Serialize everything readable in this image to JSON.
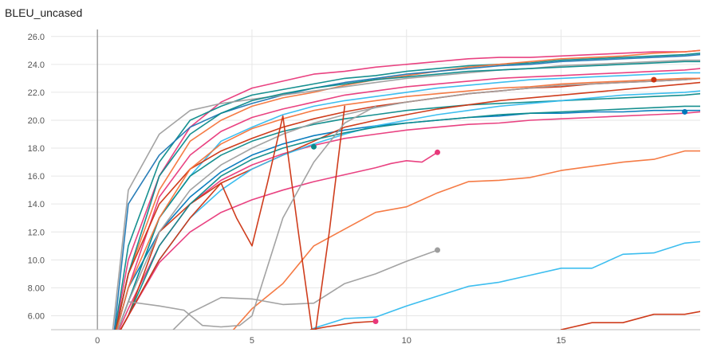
{
  "chart_data": {
    "type": "line",
    "title": "BLEU_uncased",
    "xlabel": "",
    "ylabel": "",
    "xlim": [
      -1.5,
      19.5
    ],
    "ylim": [
      5.0,
      26.5
    ],
    "x_ticks": [
      0,
      5,
      10,
      15
    ],
    "x_tick_labels": [
      "0",
      "5",
      "10",
      "15"
    ],
    "y_ticks": [
      6,
      8,
      10,
      12,
      14,
      16,
      18,
      20,
      22,
      24,
      26
    ],
    "y_tick_labels": [
      "6.00",
      "8.00",
      "10.0",
      "12.0",
      "14.0",
      "16.0",
      "18.0",
      "20.0",
      "22.0",
      "24.0",
      "26.0"
    ],
    "grid": true,
    "legend": "none",
    "series": [
      {
        "color": "#e8387a",
        "x": [
          0.5,
          1,
          2,
          3,
          4,
          5,
          6,
          7,
          8,
          9,
          10,
          11,
          12,
          13,
          14,
          15,
          16,
          17,
          18,
          19,
          19.5
        ],
        "y": [
          4,
          10,
          16,
          19.5,
          21.3,
          22.3,
          22.8,
          23.3,
          23.5,
          23.8,
          24,
          24.2,
          24.4,
          24.5,
          24.5,
          24.6,
          24.7,
          24.8,
          24.9,
          24.9,
          25
        ]
      },
      {
        "color": "#0b8a8a",
        "x": [
          0.5,
          1,
          2,
          3,
          4,
          5,
          6,
          7,
          8,
          9,
          10,
          11,
          12,
          13,
          14,
          15,
          16,
          17,
          18,
          19,
          19.5
        ],
        "y": [
          4,
          11,
          17,
          20,
          21,
          21.8,
          22.2,
          22.6,
          23,
          23.2,
          23.5,
          23.7,
          23.9,
          24,
          24.1,
          24.3,
          24.4,
          24.5,
          24.6,
          24.7,
          24.8
        ]
      },
      {
        "color": "#f4743b",
        "x": [
          0.5,
          1,
          2,
          3,
          4,
          5,
          6,
          7,
          8,
          9,
          10,
          11,
          12,
          13,
          14,
          15,
          16,
          17,
          18,
          19,
          19.5
        ],
        "y": [
          4,
          9,
          15,
          18.5,
          20,
          21,
          21.6,
          22,
          22.5,
          22.9,
          23.2,
          23.5,
          23.8,
          24,
          24.2,
          24.4,
          24.5,
          24.6,
          24.8,
          24.9,
          25
        ]
      },
      {
        "color": "#1f77b4",
        "x": [
          0.5,
          1,
          2,
          3,
          4,
          5,
          6,
          7,
          8,
          9,
          10,
          11,
          12,
          13,
          14,
          15,
          16,
          17,
          18,
          19,
          19.5
        ],
        "y": [
          4,
          14,
          17.5,
          19.5,
          20.5,
          21.2,
          21.8,
          22.3,
          22.7,
          23,
          23.3,
          23.5,
          23.7,
          23.9,
          24,
          24.2,
          24.3,
          24.4,
          24.5,
          24.6,
          24.7
        ]
      },
      {
        "color": "#9e9e9e",
        "x": [
          0.5,
          1,
          2,
          3,
          4,
          5,
          6,
          7,
          8,
          9,
          10,
          11,
          12,
          13,
          14,
          15,
          16,
          17,
          18,
          19,
          19.5
        ],
        "y": [
          5,
          15,
          19,
          20.7,
          21.2,
          21.5,
          21.8,
          22.1,
          22.4,
          22.7,
          23,
          23.2,
          23.4,
          23.6,
          23.7,
          23.9,
          24,
          24.1,
          24.2,
          24.3,
          24.3
        ]
      },
      {
        "color": "#0b8a8a",
        "x": [
          0.5,
          1,
          2,
          3,
          4,
          5,
          6,
          7,
          8,
          9,
          10,
          11,
          12,
          13,
          14,
          15,
          16,
          17,
          18,
          19,
          19.5
        ],
        "y": [
          4,
          9,
          16,
          19,
          20.5,
          21.4,
          21.9,
          22.3,
          22.6,
          22.9,
          23.1,
          23.3,
          23.5,
          23.6,
          23.7,
          23.8,
          23.9,
          24,
          24.1,
          24.2,
          24.2
        ]
      },
      {
        "color": "#e8387a",
        "x": [
          0.5,
          1,
          2,
          3,
          4,
          5,
          6,
          7,
          8,
          9,
          10,
          11,
          12,
          13,
          14,
          15,
          16,
          17,
          18,
          19,
          19.5
        ],
        "y": [
          4,
          8,
          14.5,
          17.5,
          19.2,
          20.2,
          20.8,
          21.3,
          21.8,
          22.1,
          22.4,
          22.6,
          22.8,
          23,
          23.1,
          23.2,
          23.3,
          23.4,
          23.5,
          23.6,
          23.7
        ]
      },
      {
        "color": "#33bbee",
        "x": [
          0.5,
          1,
          2,
          3,
          4,
          5,
          6,
          7,
          8,
          9,
          10,
          11,
          12,
          13,
          14,
          15,
          16,
          17,
          18,
          19,
          19.5
        ],
        "y": [
          4,
          7,
          13,
          16,
          18.5,
          19.5,
          20.4,
          21,
          21.4,
          21.7,
          22,
          22.3,
          22.5,
          22.7,
          22.9,
          23,
          23.1,
          23.2,
          23.3,
          23.4,
          23.4
        ]
      },
      {
        "color": "#cc3311",
        "x": [
          0.5,
          1,
          2,
          3,
          4,
          5,
          6,
          7,
          8,
          9,
          10,
          11,
          12,
          13,
          14,
          15,
          16,
          17,
          18,
          19,
          19.5
        ],
        "y": [
          4,
          9,
          14,
          16.5,
          17.8,
          18.7,
          19.5,
          20.1,
          20.6,
          21,
          21.3,
          21.6,
          21.9,
          22.1,
          22.3,
          22.4,
          22.6,
          22.7,
          22.8,
          22.9,
          23
        ]
      },
      {
        "color": "#0077bb",
        "x": [
          0.5,
          1,
          2,
          3,
          4,
          5,
          6,
          7,
          8,
          9,
          10,
          11,
          12,
          13,
          14,
          15,
          16,
          17,
          18,
          19,
          19.5
        ],
        "y": [
          4,
          8,
          12,
          14.5,
          16.3,
          17.5,
          18.3,
          18.9,
          19.3,
          19.6,
          19.8,
          20,
          20.2,
          20.3,
          20.5,
          20.5,
          20.6,
          20.6,
          20.7,
          20.7,
          20.7
        ]
      },
      {
        "color": "#0b8a8a",
        "x": [
          0.5,
          1,
          2,
          3,
          4,
          5,
          6,
          7,
          8,
          9,
          10,
          11,
          12,
          13,
          14,
          15,
          16,
          17,
          18,
          19,
          19.5
        ],
        "y": [
          4,
          7,
          13,
          16,
          17.5,
          18.5,
          19.2,
          19.7,
          20.1,
          20.4,
          20.7,
          20.9,
          21.1,
          21.2,
          21.3,
          21.4,
          21.5,
          21.6,
          21.7,
          21.8,
          21.9
        ]
      },
      {
        "color": "#e8387a",
        "x": [
          0.5,
          1,
          2,
          3,
          4,
          5,
          6,
          7,
          8,
          9,
          10,
          11,
          12,
          13,
          14,
          15,
          16,
          17,
          18,
          19,
          19.5
        ],
        "y": [
          4,
          6.5,
          11,
          14,
          15.7,
          16.8,
          17.6,
          18.2,
          18.7,
          19,
          19.3,
          19.5,
          19.7,
          19.8,
          20,
          20.1,
          20.2,
          20.3,
          20.4,
          20.5,
          20.6
        ]
      },
      {
        "color": "#cc3311",
        "x": [
          0.5,
          1,
          2,
          3,
          4,
          5,
          6,
          7,
          8,
          9,
          10,
          11,
          12,
          13,
          14,
          15,
          16,
          17,
          18,
          19,
          19.5
        ],
        "y": [
          4,
          6,
          12,
          14,
          15.5,
          16.5,
          17.5,
          18.5,
          19.5,
          20,
          20.4,
          20.8,
          21.1,
          21.4,
          21.6,
          21.8,
          22,
          22.2,
          22.4,
          22.6,
          22.7
        ]
      },
      {
        "color": "#33bbee",
        "x": [
          0.5,
          1,
          2,
          3,
          4,
          5,
          6,
          7,
          8,
          9,
          10,
          11,
          12,
          13,
          14,
          15,
          16,
          17,
          18,
          19,
          19.5
        ],
        "y": [
          4,
          6,
          10,
          13,
          15,
          16.5,
          17.5,
          18.3,
          19,
          19.6,
          20,
          20.4,
          20.7,
          21,
          21.2,
          21.4,
          21.6,
          21.8,
          21.9,
          22,
          22.1
        ]
      },
      {
        "color": "#9e9e9e",
        "x": [
          0.5,
          1,
          2,
          3,
          4,
          5,
          6,
          7,
          8,
          9,
          10,
          11,
          12,
          13,
          14,
          15,
          16,
          17,
          18,
          19,
          19.5
        ],
        "y": [
          4,
          7,
          12,
          15,
          16.8,
          18,
          19,
          19.8,
          20.4,
          20.9,
          21.3,
          21.6,
          21.9,
          22.1,
          22.3,
          22.5,
          22.6,
          22.7,
          22.8,
          22.9,
          23
        ]
      },
      {
        "color": "#f4743b",
        "x": [
          0.5,
          1,
          2,
          3,
          4,
          5,
          6,
          7,
          8,
          9,
          10,
          11,
          12,
          13,
          14,
          15,
          16,
          17,
          18,
          19,
          19.5
        ],
        "y": [
          4,
          8,
          13,
          16.5,
          18.3,
          19.4,
          20.1,
          20.7,
          21.1,
          21.4,
          21.7,
          21.9,
          22.1,
          22.3,
          22.4,
          22.6,
          22.7,
          22.8,
          22.9,
          23,
          23
        ]
      },
      {
        "color": "#0b8a8a",
        "x": [
          0.5,
          1,
          2,
          3,
          4,
          5,
          6,
          7,
          8,
          9,
          10,
          11,
          12,
          13,
          14,
          15,
          16,
          17,
          18,
          19,
          19.5
        ],
        "y": [
          4,
          6,
          11,
          14,
          16,
          17.2,
          18,
          18.6,
          19.1,
          19.5,
          19.8,
          20,
          20.2,
          20.4,
          20.5,
          20.6,
          20.7,
          20.8,
          20.9,
          21,
          21
        ]
      },
      {
        "color": "#e8387a",
        "x": [
          0.5,
          1,
          2,
          3,
          4,
          5,
          6,
          7,
          8,
          9,
          9.5,
          10,
          10.5,
          11
        ],
        "y": [
          4,
          6,
          9.8,
          12,
          13.4,
          14.3,
          15,
          15.6,
          16.1,
          16.6,
          16.9,
          17.1,
          17,
          17.7
        ]
      },
      {
        "color": "#f4743b",
        "x": [
          4,
          5,
          6,
          7,
          8,
          9,
          10,
          11,
          12,
          13,
          14,
          15,
          16,
          17,
          18,
          19,
          19.5
        ],
        "y": [
          4,
          6.5,
          8.3,
          11,
          12.2,
          13.4,
          13.8,
          14.8,
          15.6,
          15.7,
          15.9,
          16.4,
          16.7,
          17,
          17.2,
          17.8,
          17.8
        ]
      },
      {
        "color": "#9e9e9e",
        "x": [
          2,
          3,
          4,
          5,
          6,
          7,
          8,
          9,
          10,
          11
        ],
        "y": [
          4,
          6.2,
          7.3,
          7.2,
          6.8,
          6.9,
          8.3,
          9,
          9.9,
          10.7
        ]
      },
      {
        "color": "#33bbee",
        "x": [
          6,
          7,
          8,
          9,
          10,
          11,
          12,
          13,
          14,
          15,
          16,
          17,
          18,
          19,
          19.5
        ],
        "y": [
          4,
          5.1,
          5.8,
          5.9,
          6.7,
          7.4,
          8.1,
          8.4,
          8.9,
          9.4,
          9.4,
          10.4,
          10.5,
          11.2,
          11.3
        ]
      },
      {
        "color": "#cc3311",
        "x": [
          6.9,
          7.4,
          8.3,
          9
        ],
        "y": [
          5,
          5.2,
          5.5,
          5.6
        ]
      },
      {
        "color": "#cc3311",
        "x": [
          15,
          16,
          17,
          18,
          19,
          19.5
        ],
        "y": [
          5,
          5.5,
          5.5,
          6.1,
          6.1,
          6.3
        ]
      },
      {
        "color": "#cc3311",
        "x": [
          0.5,
          1,
          2,
          3,
          4,
          4.5,
          5,
          5.5,
          6,
          6.5,
          7,
          7.5,
          8
        ],
        "y": [
          4,
          6,
          10,
          13,
          15.5,
          13,
          11,
          15.5,
          20.3,
          12,
          4,
          12,
          21
        ]
      },
      {
        "color": "#9e9e9e",
        "x": [
          0.5,
          1,
          2,
          2.8,
          3.4,
          4,
          4.6,
          5,
          6,
          7,
          8,
          9
        ],
        "y": [
          4,
          7,
          6.7,
          6.4,
          5.3,
          5.2,
          5.3,
          6,
          13,
          17,
          19.8,
          21
        ]
      }
    ],
    "markers": [
      {
        "color": "#e8387a",
        "x": 11,
        "y": 17.7
      },
      {
        "color": "#9e9e9e",
        "x": 11,
        "y": 10.7
      },
      {
        "color": "#e8387a",
        "x": 9,
        "y": 5.6
      },
      {
        "color": "#cc3311",
        "x": 18,
        "y": 22.9
      },
      {
        "color": "#0077bb",
        "x": 19,
        "y": 20.6
      },
      {
        "color": "#0b8a8a",
        "x": 7,
        "y": 18.1
      }
    ]
  }
}
